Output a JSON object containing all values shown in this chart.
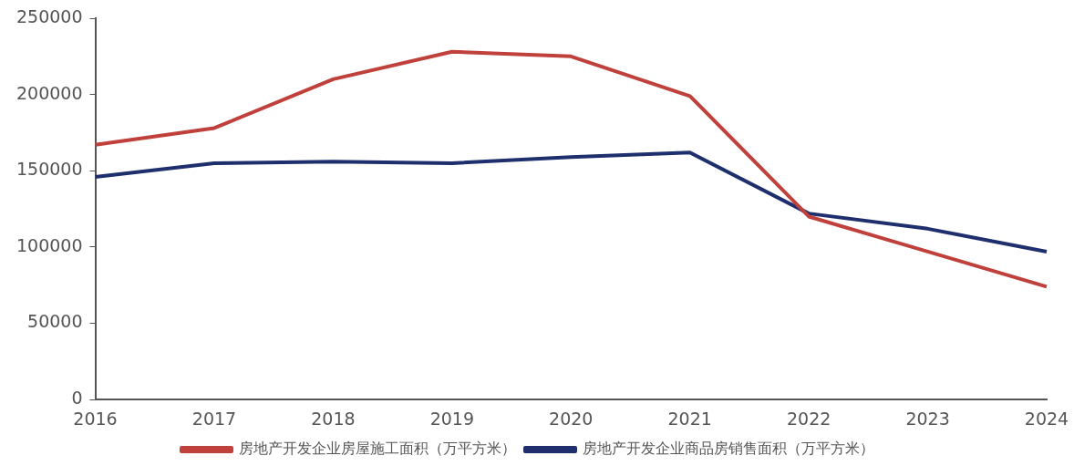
{
  "chart_data": {
    "type": "line",
    "categories": [
      "2016",
      "2017",
      "2018",
      "2019",
      "2020",
      "2021",
      "2022",
      "2023",
      "2024"
    ],
    "series": [
      {
        "name": "房地产开发企业房屋施工面积（万平方米）",
        "color": "#c0403c",
        "values": [
          167000,
          178000,
          210000,
          228000,
          225000,
          199000,
          120000,
          97000,
          74000
        ]
      },
      {
        "name": "房地产开发企业商品房销售面积（万平方米）",
        "color": "#1f2f6e",
        "values": [
          146000,
          155000,
          156000,
          155000,
          159000,
          162000,
          122000,
          112000,
          97000
        ]
      }
    ],
    "ylim": [
      0,
      250000
    ],
    "yticks": [
      0,
      50000,
      100000,
      150000,
      200000,
      250000
    ],
    "grid": false,
    "legend": "bottom",
    "marker": "none",
    "line_style": "solid"
  }
}
